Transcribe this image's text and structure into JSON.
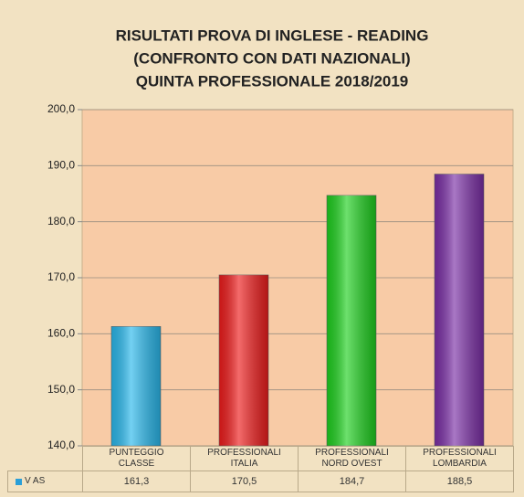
{
  "chart_data": {
    "type": "bar",
    "title": [
      "RISULTATI PROVA DI INGLESE - READING",
      "(CONFRONTO CON DATI NAZIONALI)",
      "QUINTA PROFESSIONALE 2018/2019"
    ],
    "categories": [
      "PUNTEGGIO CLASSE",
      "PROFESSIONALI ITALIA",
      "PROFESSIONALI NORD OVEST",
      "PROFESSIONALI LOMBARDIA"
    ],
    "series": [
      {
        "name": "V AS",
        "color": "#2a9fd8",
        "colors": [
          "#29b8ec",
          "#ee1c1c",
          "#1fd01f",
          "#7b2fa6"
        ],
        "values": [
          161.3,
          170.5,
          184.7,
          188.5
        ],
        "value_labels": [
          "161,3",
          "170,5",
          "184,7",
          "188,5"
        ]
      }
    ],
    "ylim": [
      140,
      200
    ],
    "yticks": [
      {
        "value": 140,
        "label": "140,0"
      },
      {
        "value": 150,
        "label": "150,0"
      },
      {
        "value": 160,
        "label": "160,0"
      },
      {
        "value": 170,
        "label": "170,0"
      },
      {
        "value": 180,
        "label": "180,0"
      },
      {
        "value": 190,
        "label": "190,0"
      },
      {
        "value": 200,
        "label": "200,0"
      }
    ],
    "grid": true
  }
}
